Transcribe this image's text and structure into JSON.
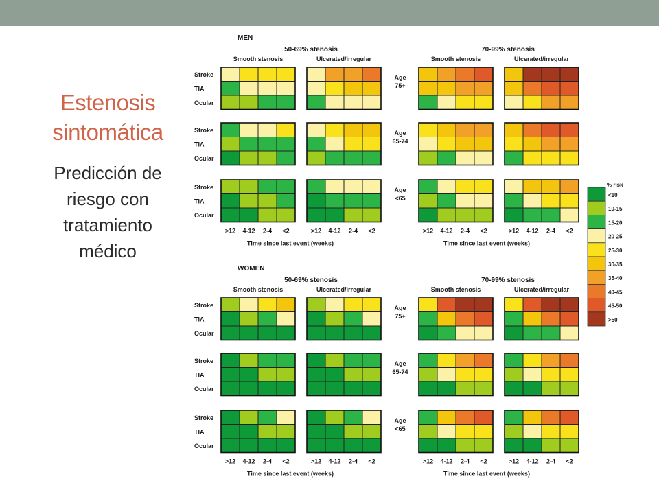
{
  "slide": {
    "title": "Estenosis sintomática",
    "subtitle": "Predicción de riesgo con tratamiento médico"
  },
  "chart_data": {
    "type": "heatmap",
    "sex_panels": [
      "MEN",
      "WOMEN"
    ],
    "stenosis_groups": [
      "50-69% stenosis",
      "70-99% stenosis"
    ],
    "surface_types": [
      "Smooth stenosis",
      "Ulcerated/irregular"
    ],
    "age_groups": [
      "Age 75+",
      "Age 65-74",
      "Age <65"
    ],
    "row_labels": [
      "Stroke",
      "TIA",
      "Ocular"
    ],
    "x_tick_labels": [
      ">12",
      "4-12",
      "2-4",
      "<2"
    ],
    "xlabel": "Time since last event (weeks)",
    "legend_title": "% risk",
    "legend_categories": [
      "<10",
      "10-15",
      "15-20",
      "20-25",
      "25-30",
      "30-35",
      "35-40",
      "40-45",
      "45-50",
      ">50"
    ],
    "legend_colors": [
      "#0f9a3a",
      "#9fcc1e",
      "#2db446",
      "#fbf2a8",
      "#f9e21b",
      "#f3c60d",
      "#f2a128",
      "#ea7a2a",
      "#e05a29",
      "#a4381f"
    ],
    "cell_category_note": "values are legend category indices (0 = <10 ... 9 = >50)",
    "grids": {
      "MEN": {
        "50-69% stenosis": {
          "Smooth stenosis": {
            "Age 75+": [
              [
                3,
                4,
                4,
                4
              ],
              [
                2,
                3,
                3,
                3
              ],
              [
                1,
                1,
                2,
                2
              ]
            ],
            "Age 65-74": [
              [
                2,
                3,
                3,
                4
              ],
              [
                1,
                2,
                2,
                2
              ],
              [
                0,
                1,
                1,
                2
              ]
            ],
            "Age <65": [
              [
                1,
                1,
                2,
                2
              ],
              [
                0,
                1,
                1,
                2
              ],
              [
                0,
                0,
                1,
                1
              ]
            ]
          },
          "Ulcerated/irregular": {
            "Age 75+": [
              [
                3,
                6,
                6,
                7
              ],
              [
                3,
                4,
                5,
                5
              ],
              [
                2,
                3,
                3,
                3
              ]
            ],
            "Age 65-74": [
              [
                3,
                4,
                5,
                5
              ],
              [
                2,
                3,
                4,
                4
              ],
              [
                1,
                2,
                2,
                2
              ]
            ],
            "Age <65": [
              [
                2,
                3,
                3,
                3
              ],
              [
                0,
                2,
                2,
                2
              ],
              [
                0,
                0,
                1,
                1
              ]
            ]
          }
        },
        "70-99% stenosis": {
          "Smooth stenosis": {
            "Age 75+": [
              [
                5,
                6,
                7,
                8
              ],
              [
                5,
                5,
                6,
                6
              ],
              [
                2,
                3,
                4,
                4
              ]
            ],
            "Age 65-74": [
              [
                4,
                5,
                6,
                6
              ],
              [
                3,
                4,
                5,
                5
              ],
              [
                1,
                2,
                3,
                3
              ]
            ],
            "Age <65": [
              [
                2,
                3,
                4,
                4
              ],
              [
                1,
                2,
                3,
                3
              ],
              [
                0,
                1,
                1,
                1
              ]
            ]
          },
          "Ulcerated/irregular": {
            "Age 75+": [
              [
                5,
                9,
                9,
                9
              ],
              [
                5,
                7,
                8,
                8
              ],
              [
                3,
                4,
                6,
                6
              ]
            ],
            "Age 65-74": [
              [
                5,
                7,
                8,
                8
              ],
              [
                4,
                5,
                6,
                6
              ],
              [
                2,
                4,
                4,
                4
              ]
            ],
            "Age <65": [
              [
                3,
                5,
                5,
                6
              ],
              [
                2,
                3,
                4,
                4
              ],
              [
                0,
                2,
                2,
                3
              ]
            ]
          }
        }
      },
      "WOMEN": {
        "50-69% stenosis": {
          "Smooth stenosis": {
            "Age 75+": [
              [
                1,
                3,
                4,
                5
              ],
              [
                0,
                1,
                2,
                3
              ],
              [
                0,
                0,
                0,
                0
              ]
            ],
            "Age 65-74": [
              [
                0,
                1,
                2,
                2
              ],
              [
                0,
                0,
                1,
                1
              ],
              [
                0,
                0,
                0,
                0
              ]
            ],
            "Age <65": [
              [
                0,
                1,
                2,
                3
              ],
              [
                0,
                0,
                1,
                1
              ],
              [
                0,
                0,
                0,
                0
              ]
            ]
          },
          "Ulcerated/irregular": {
            "Age 75+": [
              [
                1,
                3,
                4,
                4
              ],
              [
                0,
                1,
                2,
                3
              ],
              [
                0,
                0,
                0,
                0
              ]
            ],
            "Age 65-74": [
              [
                0,
                1,
                2,
                2
              ],
              [
                0,
                0,
                1,
                1
              ],
              [
                0,
                0,
                0,
                0
              ]
            ],
            "Age <65": [
              [
                0,
                1,
                2,
                3
              ],
              [
                0,
                0,
                1,
                1
              ],
              [
                0,
                0,
                0,
                0
              ]
            ]
          }
        },
        "70-99% stenosis": {
          "Smooth stenosis": {
            "Age 75+": [
              [
                4,
                8,
                9,
                9
              ],
              [
                2,
                5,
                7,
                8
              ],
              [
                0,
                2,
                3,
                3
              ]
            ],
            "Age 65-74": [
              [
                2,
                4,
                6,
                7
              ],
              [
                1,
                3,
                4,
                4
              ],
              [
                0,
                0,
                1,
                1
              ]
            ],
            "Age <65": [
              [
                2,
                5,
                7,
                8
              ],
              [
                1,
                3,
                4,
                4
              ],
              [
                0,
                0,
                1,
                1
              ]
            ]
          },
          "Ulcerated/irregular": {
            "Age 75+": [
              [
                4,
                8,
                9,
                9
              ],
              [
                2,
                5,
                7,
                8
              ],
              [
                0,
                2,
                2,
                3
              ]
            ],
            "Age 65-74": [
              [
                2,
                4,
                6,
                7
              ],
              [
                1,
                3,
                4,
                4
              ],
              [
                0,
                0,
                1,
                1
              ]
            ],
            "Age <65": [
              [
                2,
                5,
                7,
                8
              ],
              [
                1,
                3,
                4,
                4
              ],
              [
                0,
                0,
                1,
                1
              ]
            ]
          }
        }
      }
    }
  }
}
